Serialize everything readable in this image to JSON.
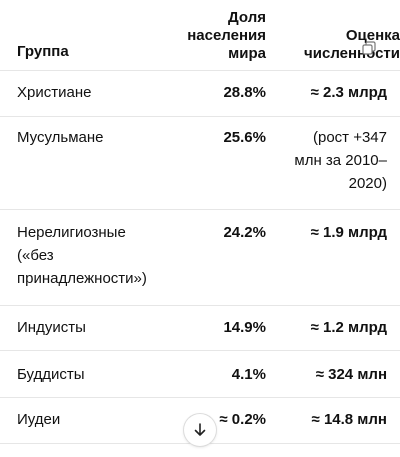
{
  "table": {
    "headers": {
      "group": "Группа",
      "share": [
        "Доля",
        "населения",
        "мира"
      ],
      "count": [
        "Оценка",
        "численности"
      ]
    },
    "rows": [
      {
        "group": [
          "Христиане"
        ],
        "share": "28.8%",
        "count": [
          "≈ 2.3 млрд"
        ],
        "count_bold": true
      },
      {
        "group": [
          "Мусульмане"
        ],
        "share": "25.6%",
        "count": [
          "(рост +347",
          "млн за 2010–",
          "2020)"
        ],
        "count_bold": false
      },
      {
        "group": [
          "Нерелигиозные",
          "(«без",
          "принадлежности»)"
        ],
        "share": "24.2%",
        "count": [
          "≈ 1.9 млрд"
        ],
        "count_bold": true
      },
      {
        "group": [
          "Индуисты"
        ],
        "share": "14.9%",
        "count": [
          "≈ 1.2 млрд"
        ],
        "count_bold": true
      },
      {
        "group": [
          "Буддисты"
        ],
        "share": "4.1%",
        "count": [
          "≈ 324 млн"
        ],
        "count_bold": true
      },
      {
        "group": [
          "Иудеи"
        ],
        "share": "≈ 0.2%",
        "count": [
          "≈ 14.8 млн"
        ],
        "count_bold": true
      }
    ]
  },
  "icons": {
    "copy": "copy-icon",
    "scroll": "arrow-down-icon"
  }
}
